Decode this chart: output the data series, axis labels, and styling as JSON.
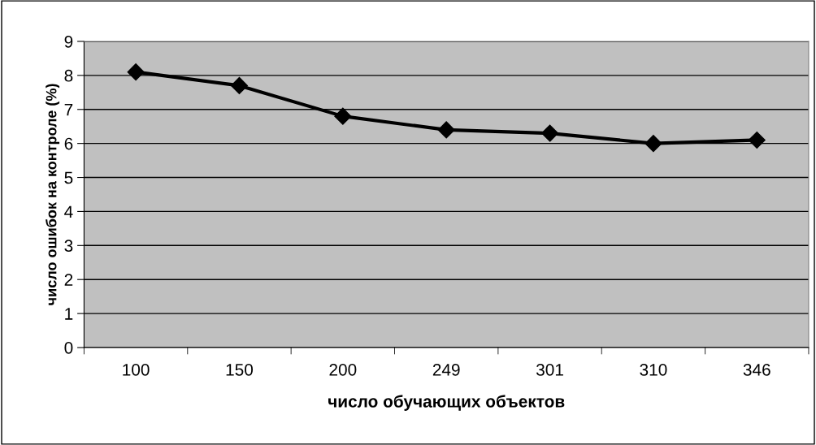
{
  "chart_data": {
    "type": "line",
    "xlabel": "число обучающих объектов",
    "ylabel": "число ошибок на контроле (%)",
    "categories": [
      "100",
      "150",
      "200",
      "249",
      "301",
      "310",
      "346"
    ],
    "series": [
      {
        "color": "#000000",
        "values": [
          8.1,
          7.7,
          6.8,
          6.4,
          6.3,
          6.0,
          6.1
        ]
      }
    ],
    "ylim": [
      0,
      9
    ],
    "yticks": [
      0,
      1,
      2,
      3,
      4,
      5,
      6,
      7,
      8,
      9
    ],
    "grid": "y",
    "marker": "diamond",
    "line_style": "solid",
    "legend": false
  }
}
